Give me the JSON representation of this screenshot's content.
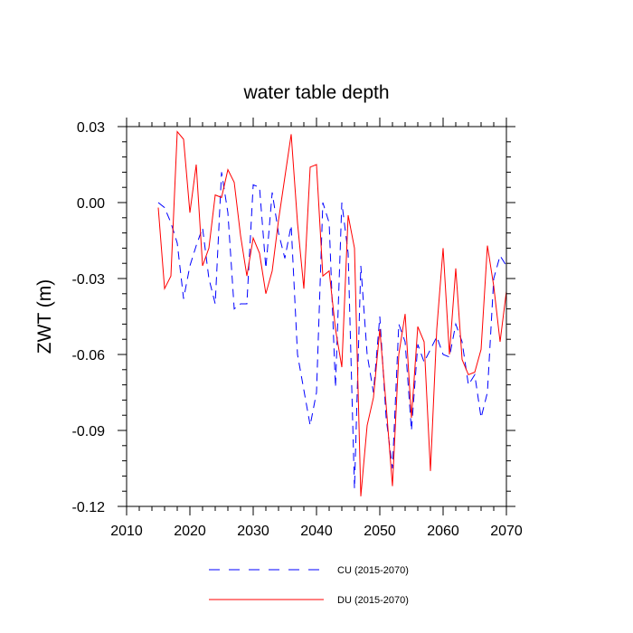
{
  "chart_data": {
    "type": "line",
    "title": "water table depth",
    "xlabel": "",
    "ylabel": "ZWT  (m)",
    "xlim": [
      2010,
      2070
    ],
    "ylim": [
      -0.12,
      0.03
    ],
    "xticks": [
      2010,
      2020,
      2030,
      2040,
      2050,
      2060,
      2070
    ],
    "xtick_labels": [
      "2010",
      "2020",
      "2030",
      "2040",
      "2050",
      "2060",
      "2070"
    ],
    "yticks": [
      0.03,
      0.0,
      -0.03,
      -0.06,
      -0.09,
      -0.12
    ],
    "ytick_labels": [
      "0.03",
      "0.00",
      "-0.03",
      "-0.06",
      "-0.09",
      "-0.12"
    ],
    "x": [
      2015,
      2016,
      2017,
      2018,
      2019,
      2020,
      2021,
      2022,
      2023,
      2024,
      2025,
      2026,
      2027,
      2028,
      2029,
      2030,
      2031,
      2032,
      2033,
      2034,
      2035,
      2036,
      2037,
      2038,
      2039,
      2040,
      2041,
      2042,
      2043,
      2044,
      2045,
      2046,
      2047,
      2048,
      2049,
      2050,
      2051,
      2052,
      2053,
      2054,
      2055,
      2056,
      2057,
      2058,
      2059,
      2060,
      2061,
      2062,
      2063,
      2064,
      2065,
      2066,
      2067,
      2068,
      2069,
      2070
    ],
    "series": [
      {
        "name": "CU (2015-2070)",
        "color": "#0000ff",
        "style": "dashed",
        "values": [
          0.0,
          -0.002,
          -0.008,
          -0.016,
          -0.038,
          -0.025,
          -0.017,
          -0.01,
          -0.03,
          -0.04,
          0.012,
          -0.004,
          -0.042,
          -0.04,
          -0.04,
          0.007,
          0.006,
          -0.026,
          0.004,
          -0.012,
          -0.022,
          -0.009,
          -0.06,
          -0.074,
          -0.088,
          -0.075,
          0.0,
          -0.008,
          -0.073,
          0.0,
          -0.02,
          -0.113,
          -0.025,
          -0.06,
          -0.075,
          -0.045,
          -0.085,
          -0.105,
          -0.048,
          -0.055,
          -0.09,
          -0.056,
          -0.063,
          -0.058,
          -0.053,
          -0.06,
          -0.061,
          -0.048,
          -0.055,
          -0.072,
          -0.068,
          -0.085,
          -0.075,
          -0.03,
          -0.021,
          -0.025
        ]
      },
      {
        "name": "DU (2015-2070)",
        "color": "#ff0000",
        "style": "solid",
        "values": [
          -0.002,
          -0.034,
          -0.029,
          0.028,
          0.025,
          -0.004,
          0.015,
          -0.025,
          -0.018,
          0.003,
          0.002,
          0.013,
          0.008,
          -0.013,
          -0.029,
          -0.014,
          -0.02,
          -0.036,
          -0.027,
          -0.007,
          0.01,
          0.027,
          -0.008,
          -0.034,
          0.014,
          0.015,
          -0.029,
          -0.027,
          -0.05,
          -0.065,
          -0.005,
          -0.018,
          -0.116,
          -0.088,
          -0.077,
          -0.05,
          -0.08,
          -0.112,
          -0.06,
          -0.044,
          -0.085,
          -0.049,
          -0.055,
          -0.106,
          -0.05,
          -0.018,
          -0.06,
          -0.026,
          -0.062,
          -0.068,
          -0.067,
          -0.058,
          -0.017,
          -0.033,
          -0.055,
          -0.035
        ]
      }
    ],
    "legend_placement": "bottom-center"
  }
}
